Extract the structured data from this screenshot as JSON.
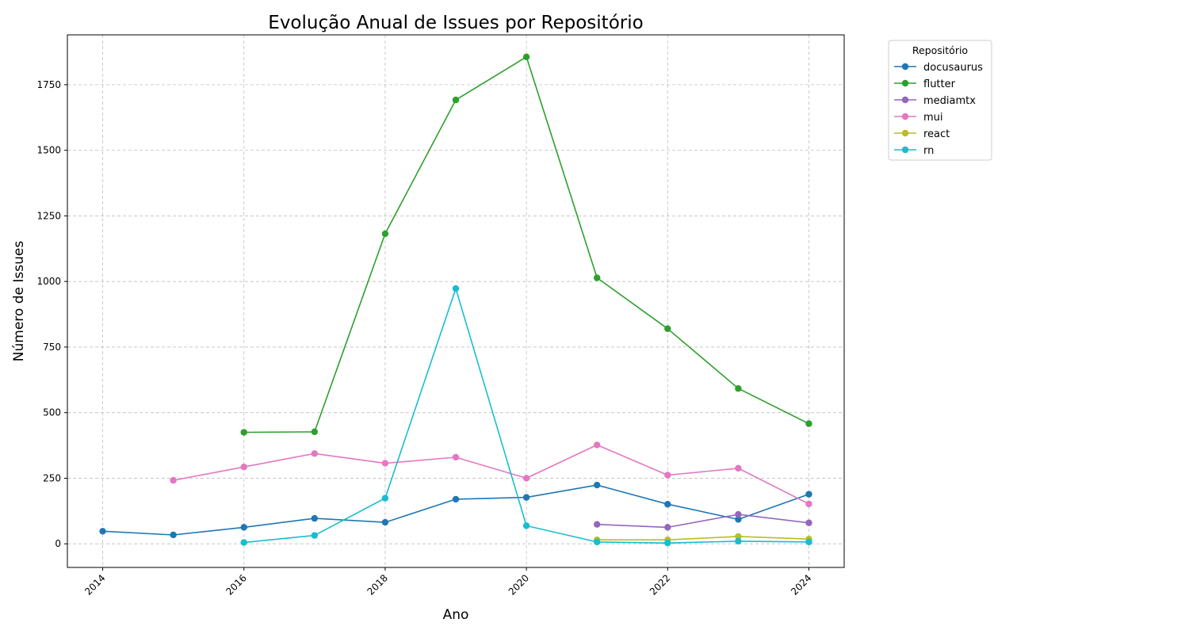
{
  "chart_data": {
    "type": "line",
    "title": "Evolução Anual de Issues por Repositório",
    "xlabel": "Ano",
    "ylabel": "Número de Issues",
    "xlim": [
      2013.5,
      2024.5
    ],
    "ylim": [
      -90,
      1940
    ],
    "x_ticks": [
      2014,
      2016,
      2018,
      2020,
      2022,
      2024
    ],
    "y_ticks": [
      0,
      250,
      500,
      750,
      1000,
      1250,
      1500,
      1750
    ],
    "grid": true,
    "legend_title": "Repositório",
    "legend_position": "outside-top-right",
    "series": [
      {
        "name": "docusaurus",
        "color": "#1f77b4",
        "x": [
          2014,
          2015,
          2016,
          2017,
          2018,
          2019,
          2020,
          2021,
          2022,
          2023,
          2024
        ],
        "y": [
          48,
          34,
          63,
          97,
          82,
          170,
          177,
          224,
          151,
          93,
          189
        ]
      },
      {
        "name": "flutter",
        "color": "#2ca02c",
        "x": [
          2016,
          2017,
          2018,
          2019,
          2020,
          2021,
          2022,
          2023,
          2024
        ],
        "y": [
          425,
          427,
          1182,
          1692,
          1856,
          1014,
          820,
          592,
          458
        ]
      },
      {
        "name": "mediamtx",
        "color": "#9467bd",
        "x": [
          2021,
          2022,
          2023,
          2024
        ],
        "y": [
          74,
          63,
          112,
          80
        ]
      },
      {
        "name": "mui",
        "color": "#e377c2",
        "x": [
          2015,
          2016,
          2017,
          2018,
          2019,
          2020,
          2021,
          2022,
          2023,
          2024
        ],
        "y": [
          242,
          293,
          344,
          307,
          330,
          250,
          377,
          262,
          288,
          152
        ]
      },
      {
        "name": "react",
        "color": "#bcbd22",
        "x": [
          2021,
          2022,
          2023,
          2024
        ],
        "y": [
          15,
          15,
          28,
          18
        ]
      },
      {
        "name": "rn",
        "color": "#17becf",
        "x": [
          2016,
          2017,
          2018,
          2019,
          2020,
          2021,
          2022,
          2023,
          2024
        ],
        "y": [
          5,
          32,
          174,
          973,
          69,
          7,
          3,
          10,
          7
        ]
      }
    ]
  }
}
